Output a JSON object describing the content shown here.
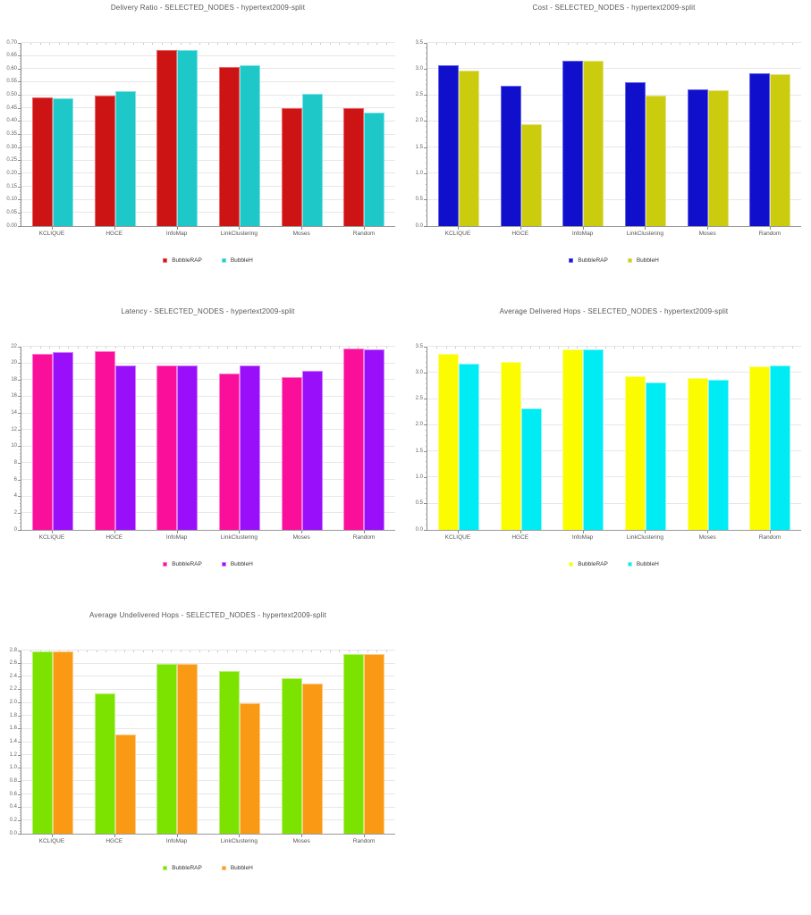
{
  "chart_data": [
    {
      "id": "delivery-ratio",
      "type": "bar",
      "title": "Delivery Ratio - SELECTED_NODES - hypertext2009-split",
      "categories": [
        "KCLIQUE",
        "HGCE",
        "InfoMap",
        "LinkClustering",
        "Moses",
        "Random"
      ],
      "series": [
        {
          "name": "BubbleRAP",
          "color": "#cc1414",
          "border": "#ee6666",
          "values": [
            0.492,
            0.497,
            0.673,
            0.608,
            0.452,
            0.45
          ]
        },
        {
          "name": "BubbleH",
          "color": "#1fc8c8",
          "border": "#7fe3e3",
          "values": [
            0.49,
            0.514,
            0.673,
            0.613,
            0.504,
            0.434
          ]
        }
      ],
      "ylim": [
        0,
        0.7
      ],
      "yticks": [
        "0.00",
        "0.05",
        "0.10",
        "0.15",
        "0.20",
        "0.25",
        "0.30",
        "0.35",
        "0.40",
        "0.45",
        "0.50",
        "0.55",
        "0.60",
        "0.65",
        "0.70"
      ],
      "grid": true,
      "legend_position": "bottom"
    },
    {
      "id": "cost",
      "type": "bar",
      "title": "Cost - SELECTED_NODES - hypertext2009-split",
      "categories": [
        "KCLIQUE",
        "HGCE",
        "InfoMap",
        "LinkClustering",
        "Moses",
        "Random"
      ],
      "series": [
        {
          "name": "BubbleRAP",
          "color": "#0f0fcc",
          "border": "#6666ee",
          "values": [
            3.07,
            2.68,
            3.16,
            2.75,
            2.62,
            2.92
          ]
        },
        {
          "name": "BubbleH",
          "color": "#cccc0f",
          "border": "#e3e37f",
          "values": [
            2.97,
            1.94,
            3.16,
            2.49,
            2.59,
            2.91
          ]
        }
      ],
      "ylim": [
        0,
        3.5
      ],
      "yticks": [
        "0.0",
        "0.5",
        "1.0",
        "1.5",
        "2.0",
        "2.5",
        "3.0",
        "3.5"
      ],
      "grid": true,
      "legend_position": "bottom"
    },
    {
      "id": "latency",
      "type": "bar",
      "title": "Latency - SELECTED_NODES - hypertext2009-split",
      "categories": [
        "KCLIQUE",
        "HGCE",
        "InfoMap",
        "LinkClustering",
        "Moses",
        "Random"
      ],
      "series": [
        {
          "name": "BubbleRAP",
          "color": "#fa0f9b",
          "border": "#ff7ed0",
          "values": [
            21.1,
            21.5,
            19.7,
            18.8,
            18.3,
            21.8
          ]
        },
        {
          "name": "BubbleH",
          "color": "#9a0ffa",
          "border": "#d07eff",
          "values": [
            21.4,
            19.8,
            19.7,
            19.7,
            19.1,
            21.7
          ]
        }
      ],
      "ylim": [
        0,
        22
      ],
      "yticks": [
        "0",
        "2",
        "4",
        "6",
        "8",
        "10",
        "12",
        "14",
        "16",
        "18",
        "20",
        "22"
      ],
      "grid": true,
      "legend_position": "bottom"
    },
    {
      "id": "average-delivered-hops",
      "type": "bar",
      "title": "Average Delivered Hops - SELECTED_NODES - hypertext2009-split",
      "categories": [
        "KCLIQUE",
        "HGCE",
        "InfoMap",
        "LinkClustering",
        "Moses",
        "Random"
      ],
      "series": [
        {
          "name": "BubbleRAP",
          "color": "#fcfc00",
          "border": "#fdfd88",
          "values": [
            3.37,
            3.21,
            3.45,
            2.93,
            2.91,
            3.12
          ]
        },
        {
          "name": "BubbleH",
          "color": "#00ecf5",
          "border": "#88f6fa",
          "values": [
            3.17,
            2.33,
            3.45,
            2.81,
            2.87,
            3.14
          ]
        }
      ],
      "ylim": [
        0,
        3.5
      ],
      "yticks": [
        "0.0",
        "0.5",
        "1.0",
        "1.5",
        "2.0",
        "2.5",
        "3.0",
        "3.5"
      ],
      "grid": true,
      "legend_position": "bottom"
    },
    {
      "id": "average-undelivered-hops",
      "type": "bar",
      "title": "Average Undelivered Hops - SELECTED_NODES - hypertext2009-split",
      "categories": [
        "KCLIQUE",
        "HGCE",
        "InfoMap",
        "LinkClustering",
        "Moses",
        "Random"
      ],
      "series": [
        {
          "name": "BubbleRAP",
          "color": "#7ce300",
          "border": "#bcef77",
          "values": [
            2.78,
            2.14,
            2.59,
            2.49,
            2.37,
            2.74
          ]
        },
        {
          "name": "BubbleH",
          "color": "#fa9913",
          "border": "#fdcc85",
          "values": [
            2.78,
            1.52,
            2.59,
            2.0,
            2.3,
            2.74
          ]
        }
      ],
      "ylim": [
        0,
        2.8
      ],
      "yticks": [
        "0.0",
        "0.2",
        "0.4",
        "0.6",
        "0.8",
        "1.0",
        "1.2",
        "1.4",
        "1.6",
        "1.8",
        "2.0",
        "2.2",
        "2.4",
        "2.6",
        "2.8"
      ],
      "grid": true,
      "legend_position": "bottom"
    }
  ]
}
